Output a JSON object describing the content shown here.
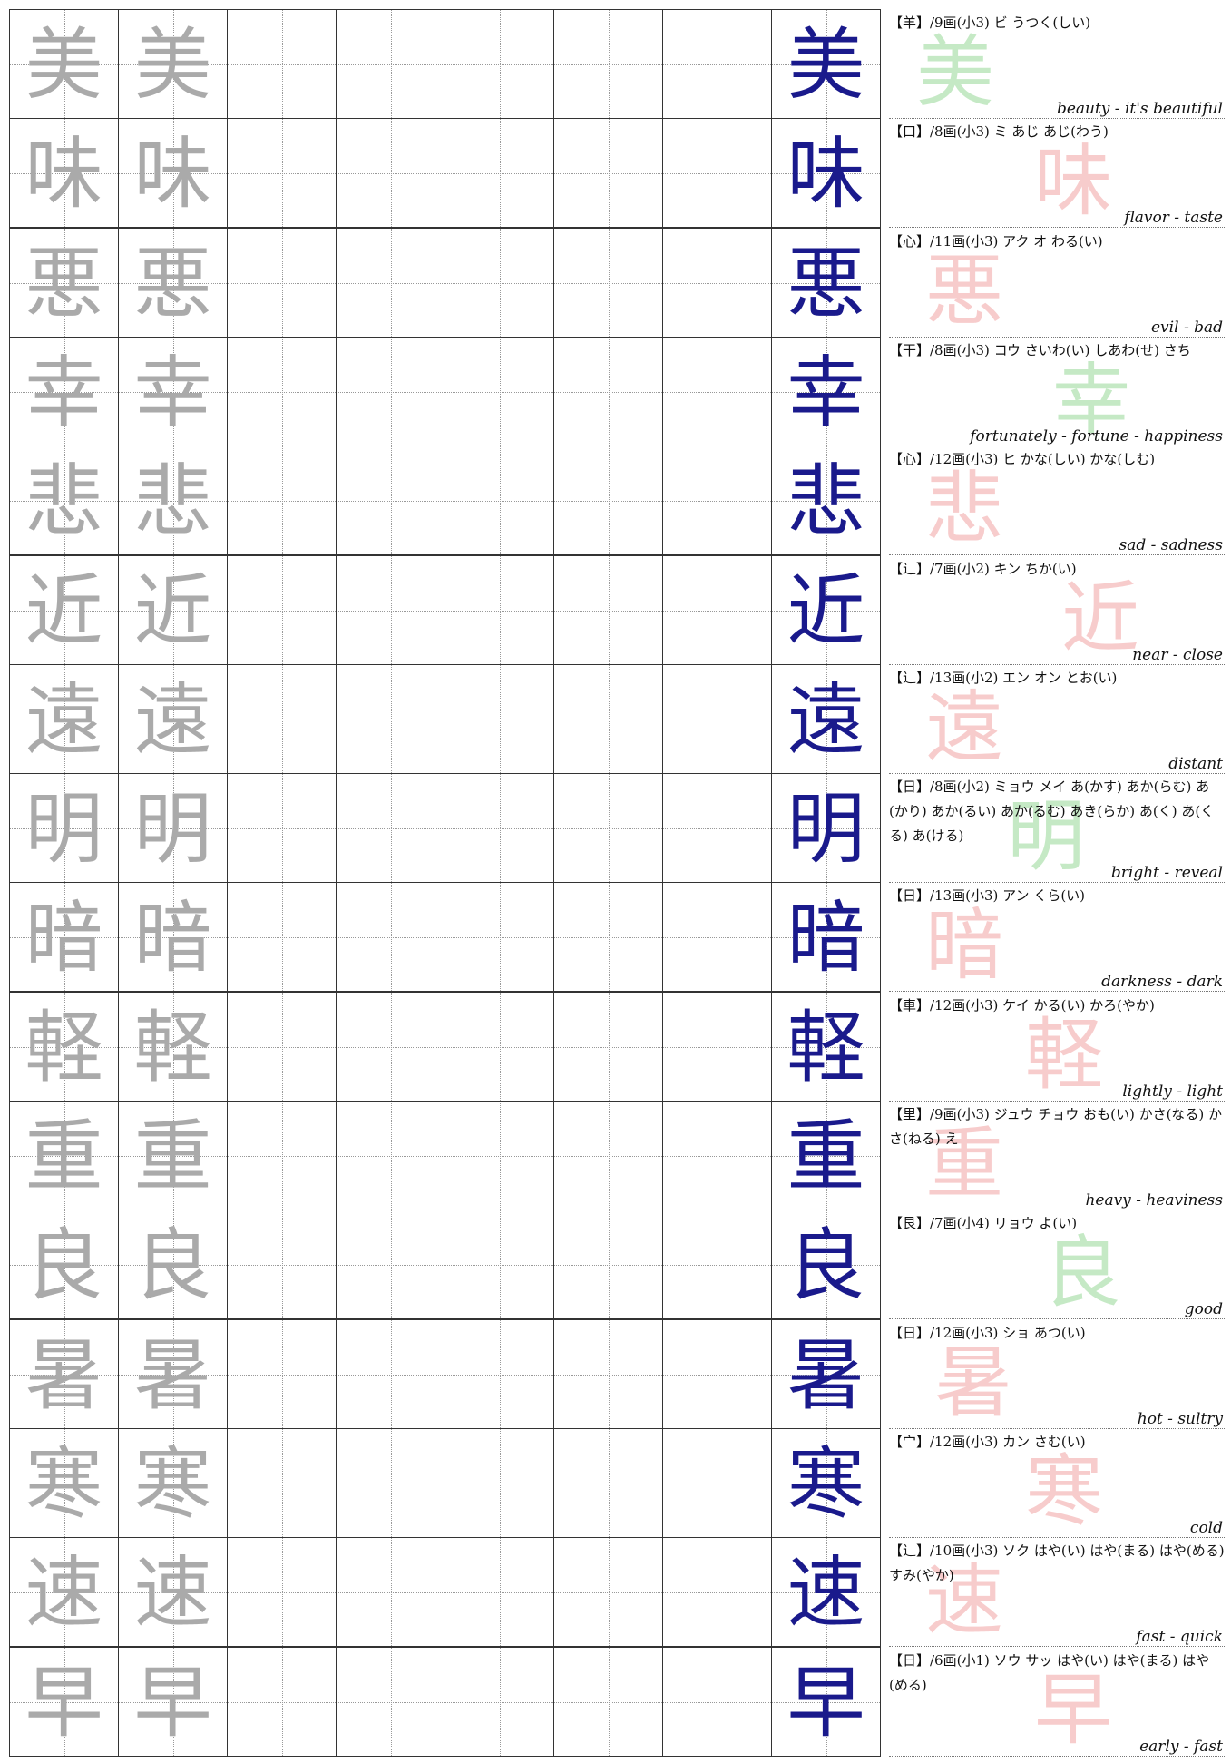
{
  "rows": [
    {
      "kanji": "美",
      "info": "【羊】/9画(小3) ビ うつく(しい)",
      "meaning": "beauty - it's beautiful"
    },
    {
      "kanji": "味",
      "info": "【口】/8画(小3) ミ あじ あじ(わう)",
      "meaning": "flavor - taste"
    },
    {
      "kanji": "悪",
      "info": "【心】/11画(小3) アク オ わる(い)",
      "meaning": "evil - bad"
    },
    {
      "kanji": "幸",
      "info": "【干】/8画(小3) コウ さいわ(い) しあわ(せ) さち",
      "meaning": "fortunately - fortune - happiness"
    },
    {
      "kanji": "悲",
      "info": "【心】/12画(小3) ヒ かな(しい) かな(しむ)",
      "meaning": "sad - sadness"
    },
    {
      "kanji": "近",
      "info": "【辶】/7画(小2) キン ちか(い)",
      "meaning": "near - close"
    },
    {
      "kanji": "遠",
      "info": "【辶】/13画(小2) エン オン とお(い)",
      "meaning": "distant"
    },
    {
      "kanji": "明",
      "info": "【日】/8画(小2) ミョウ メイ あ(かす) あか(らむ) あ(かり) あか(るい) あか(るむ) あき(らか) あ(く) あ(くる) あ(ける)",
      "meaning": "bright - reveal"
    },
    {
      "kanji": "暗",
      "info": "【日】/13画(小3) アン くら(い)",
      "meaning": "darkness - dark"
    },
    {
      "kanji": "軽",
      "info": "【車】/12画(小3) ケイ かる(い) かろ(やか)",
      "meaning": "lightly - light"
    },
    {
      "kanji": "重",
      "info": "【里】/9画(小3) ジュウ チョウ おも(い) かさ(なる) かさ(ねる) え",
      "meaning": "heavy - heaviness"
    },
    {
      "kanji": "良",
      "info": "【艮】/7画(小4) リョウ よ(い)",
      "meaning": "good"
    },
    {
      "kanji": "暑",
      "info": "【日】/12画(小3) ショ あつ(い)",
      "meaning": "hot - sultry"
    },
    {
      "kanji": "寒",
      "info": "【宀】/12画(小3) カン さむ(い)",
      "meaning": "cold"
    },
    {
      "kanji": "速",
      "info": "【辶】/10画(小3) ソク はや(い) はや(まる) はや(める) すみ(やか)",
      "meaning": "fast - quick"
    },
    {
      "kanji": "早",
      "info": "【日】/6画(小1) ソウ サッ はや(い) はや(まる) はや(める)",
      "meaning": "early - fast"
    }
  ]
}
